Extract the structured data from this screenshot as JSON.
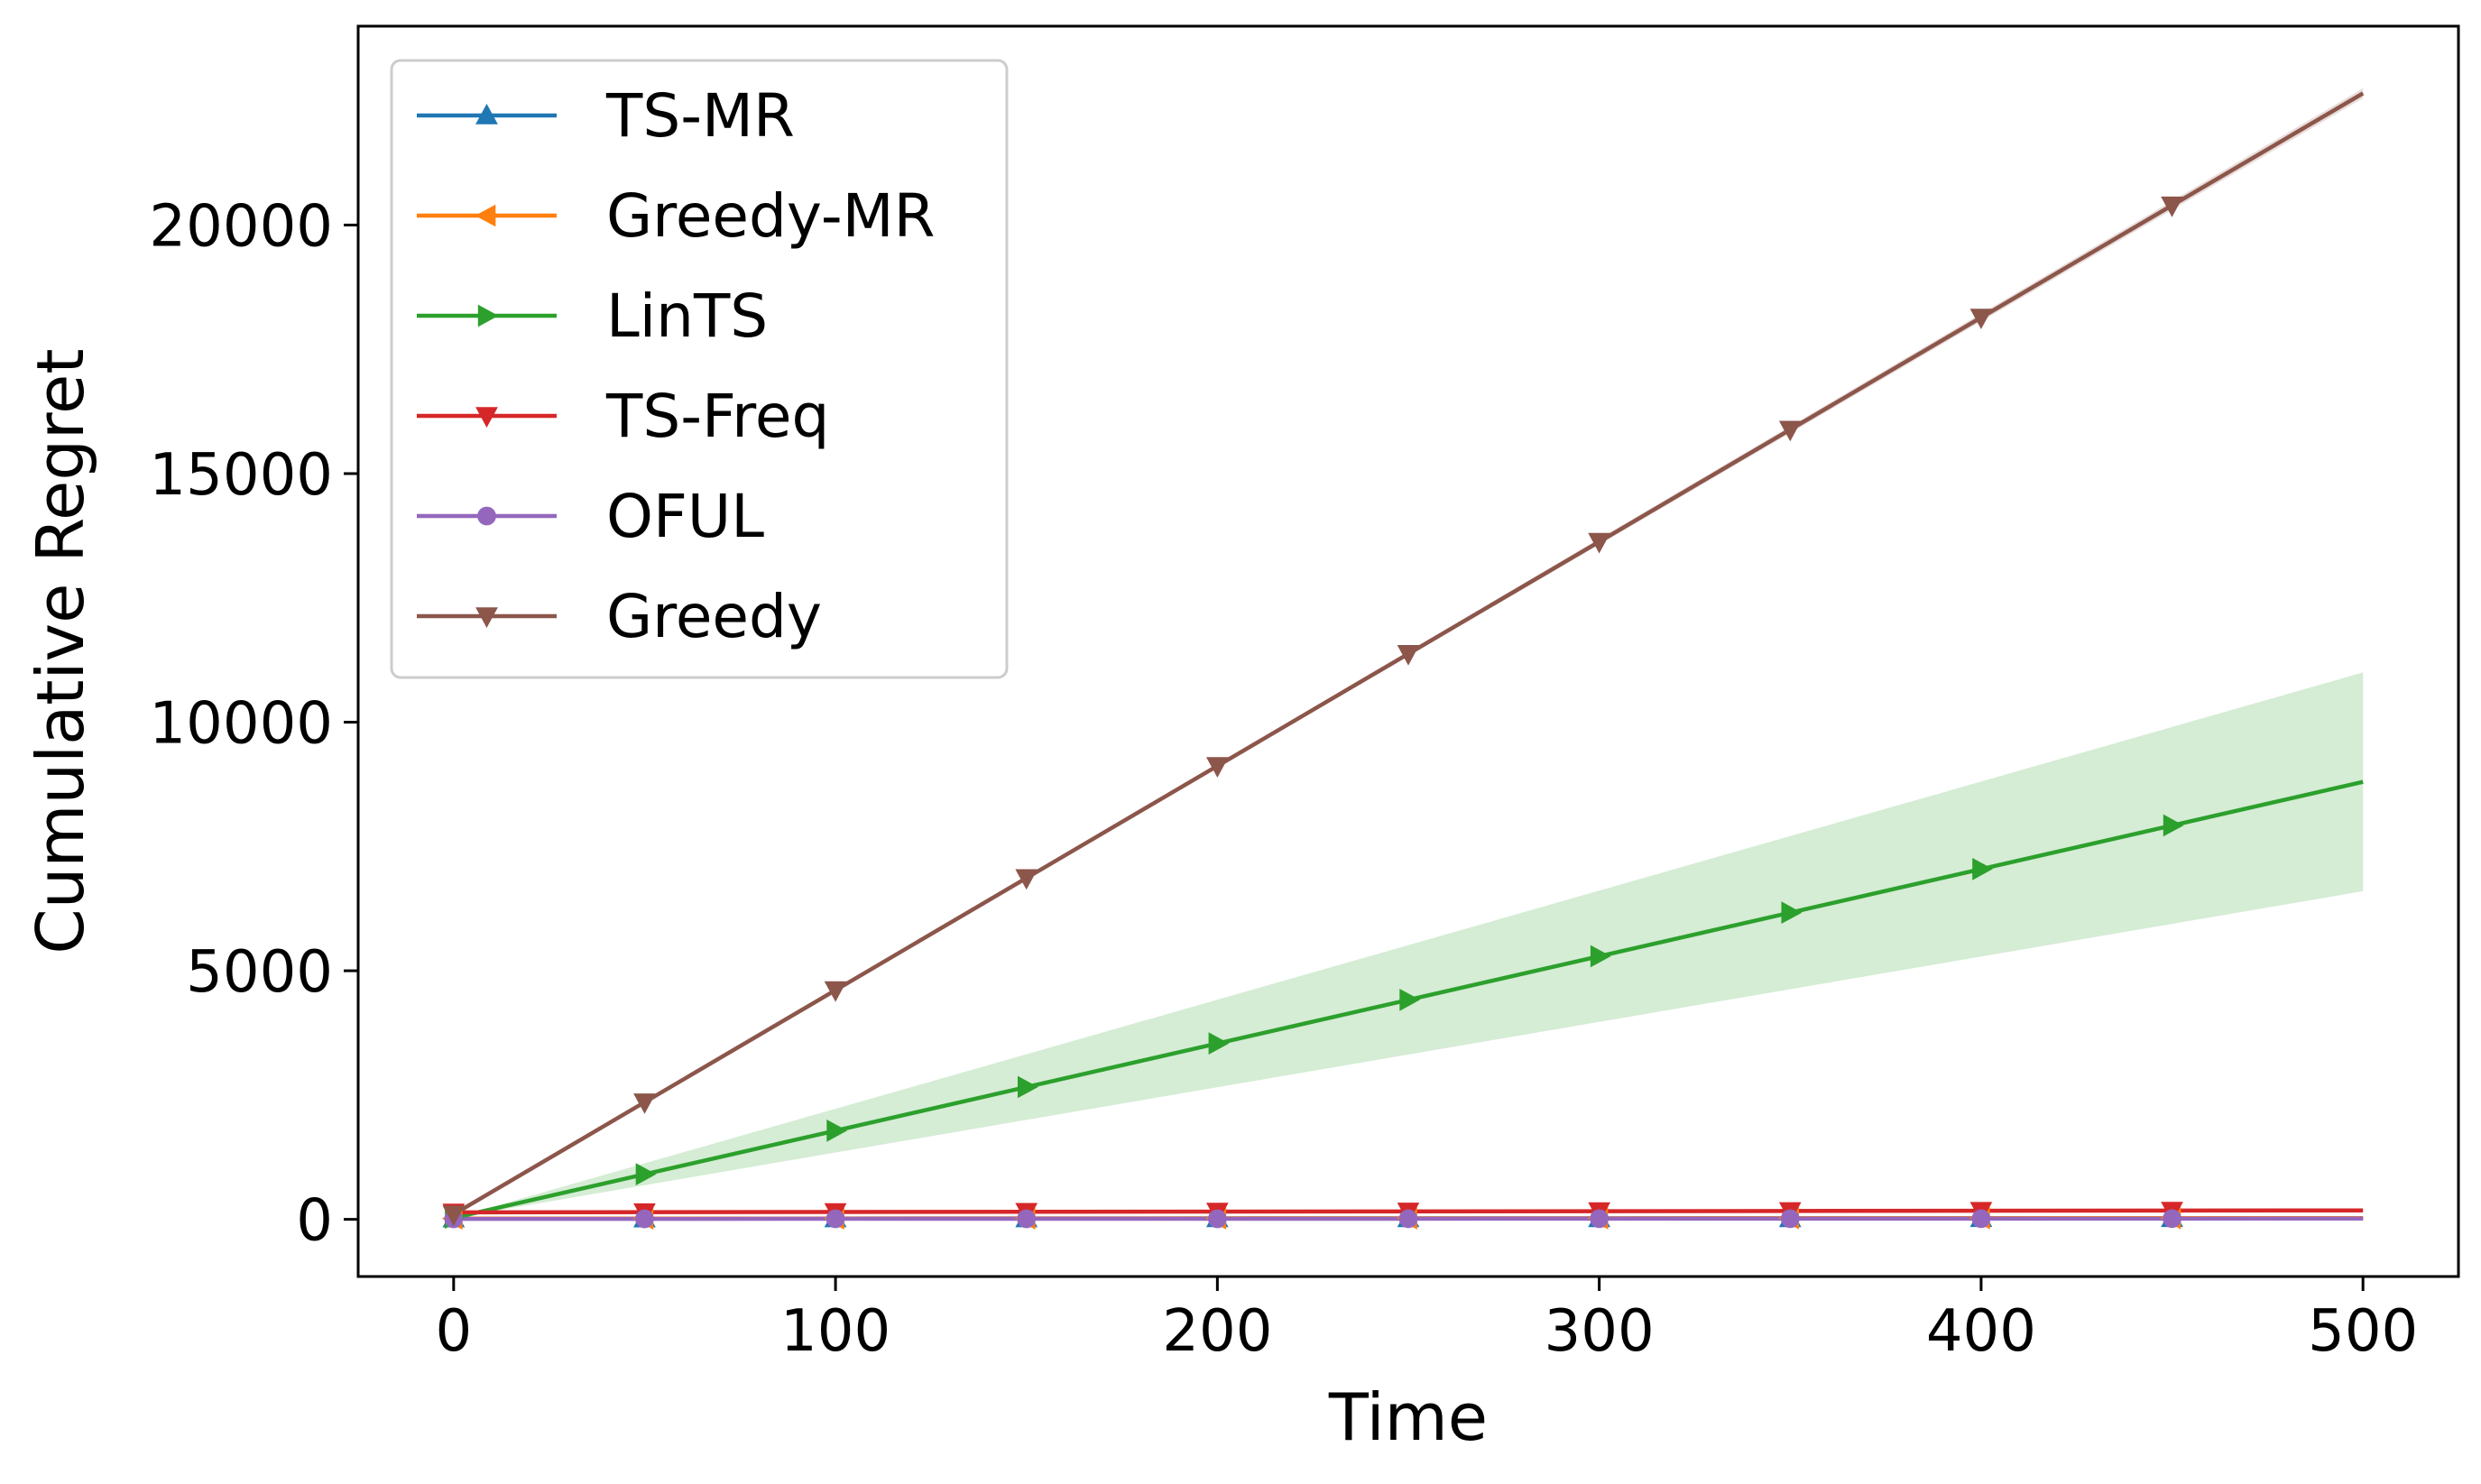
{
  "chart_data": {
    "type": "line",
    "title": "",
    "xlabel": "Time",
    "ylabel": "Cumulative Regret",
    "xlim": [
      -25,
      525
    ],
    "ylim": [
      -1150,
      24000
    ],
    "xticks": [
      0,
      100,
      200,
      300,
      400,
      500
    ],
    "yticks": [
      0,
      5000,
      10000,
      15000,
      20000
    ],
    "x_tick_labels": [
      "0",
      "100",
      "200",
      "300",
      "400",
      "500"
    ],
    "y_tick_labels": [
      "0",
      "5000",
      "10000",
      "15000",
      "20000"
    ],
    "grid": false,
    "legend_placement": "top-left",
    "marker_x": [
      0,
      50,
      100,
      150,
      200,
      250,
      300,
      350,
      400,
      450
    ],
    "series": [
      {
        "name": "TS-MR",
        "color": "#1f77b4",
        "marker": "triangle-up",
        "x": [
          0,
          500
        ],
        "y": [
          15,
          25
        ],
        "band_lower": [
          15,
          25
        ],
        "band_upper": [
          15,
          25
        ]
      },
      {
        "name": "Greedy-MR",
        "color": "#ff7f0e",
        "marker": "triangle-left",
        "x": [
          0,
          500
        ],
        "y": [
          15,
          25
        ],
        "band_lower": [
          15,
          25
        ],
        "band_upper": [
          15,
          25
        ]
      },
      {
        "name": "LinTS",
        "color": "#2ca02c",
        "marker": "triangle-right",
        "x": [
          0,
          500
        ],
        "y": [
          30,
          8800
        ],
        "band_lower": [
          30,
          6600
        ],
        "band_upper": [
          30,
          11000
        ]
      },
      {
        "name": "TS-Freq",
        "color": "#d62728",
        "marker": "triangle-down",
        "x": [
          0,
          500
        ],
        "y": [
          140,
          180
        ],
        "band_lower": [
          140,
          180
        ],
        "band_upper": [
          140,
          180
        ]
      },
      {
        "name": "OFUL",
        "color": "#9467bd",
        "marker": "circle",
        "x": [
          0,
          500
        ],
        "y": [
          10,
          15
        ],
        "band_lower": [
          10,
          15
        ],
        "band_upper": [
          10,
          15
        ]
      },
      {
        "name": "Greedy",
        "color": "#8c564b",
        "marker": "triangle-down",
        "x": [
          0,
          500
        ],
        "y": [
          100,
          22650
        ],
        "band_lower": [
          100,
          22550
        ],
        "band_upper": [
          100,
          22750
        ]
      }
    ]
  }
}
